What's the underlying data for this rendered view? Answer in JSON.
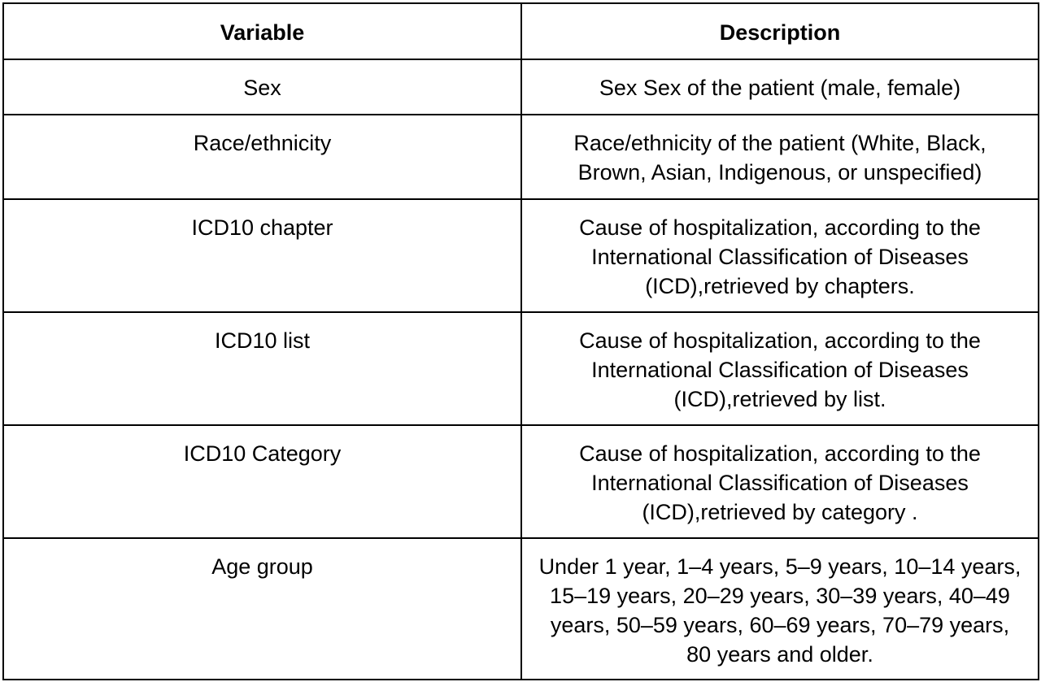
{
  "table": {
    "headers": {
      "variable": "Variable",
      "description": "Description"
    },
    "rows": [
      {
        "variable": "Sex",
        "description": "Sex Sex of the patient (male, female)"
      },
      {
        "variable": "Race/ethnicity",
        "description": "Race/ethnicity of the patient (White, Black, Brown, Asian, Indigenous, or unspecified)"
      },
      {
        "variable": "ICD10 chapter",
        "description": "Cause of hospitalization, according to the International Classification of Diseases (ICD),retrieved by chapters."
      },
      {
        "variable": "ICD10 list",
        "description": "Cause of hospitalization, according to the International Classification of Diseases (ICD),retrieved by list."
      },
      {
        "variable": "ICD10 Category",
        "description": "Cause of hospitalization, according to the International Classification of Diseases (ICD),retrieved by category ."
      },
      {
        "variable": "Age group",
        "description": "Under 1 year, 1–4 years, 5–9 years, 10–14 years, 15–19 years, 20–29 years, 30–39 years, 40–49 years, 50–59 years, 60–69 years, 70–79 years, 80 years and older."
      }
    ]
  }
}
